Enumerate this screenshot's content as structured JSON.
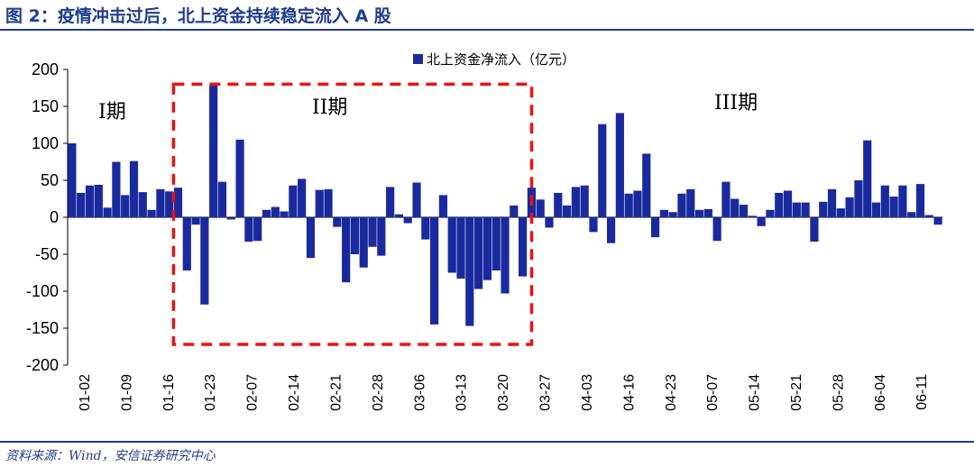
{
  "header": {
    "title": "图 2：疫情冲击过后，北上资金持续稳定流入 A 股"
  },
  "footer": {
    "source": "资料来源：Wind，安信证券研究中心"
  },
  "colors": {
    "bar": "#1a2a9e",
    "accent": "#1f3c8f",
    "box": "#ee1111"
  },
  "chart_data": {
    "type": "bar",
    "series": [
      {
        "name": "北上资金净流入（亿元）",
        "values": [
          100,
          33,
          43,
          44,
          13,
          75,
          30,
          76,
          34,
          10,
          38,
          35,
          40,
          -72,
          -10,
          -118,
          178,
          48,
          -3,
          105,
          -33,
          -32,
          10,
          14,
          8,
          43,
          52,
          -55,
          37,
          38,
          -13,
          -88,
          -50,
          -68,
          -40,
          -52,
          41,
          4,
          -8,
          47,
          -30,
          -145,
          30,
          -75,
          -83,
          -147,
          -97,
          -85,
          -72,
          -103,
          16,
          -80,
          40,
          24,
          -14,
          33,
          16,
          41,
          43,
          -20,
          126,
          -35,
          141,
          32,
          36,
          86,
          -27,
          10,
          7,
          32,
          38,
          10,
          11,
          -32,
          48,
          25,
          17,
          2,
          -12,
          10,
          33,
          36,
          20,
          20,
          -33,
          21,
          38,
          12,
          27,
          50,
          104,
          20,
          43,
          28,
          43,
          7,
          45,
          3,
          -10
        ]
      }
    ],
    "ylim": [
      -200,
      200
    ],
    "yticks": [
      "200",
      "150",
      "100",
      "50",
      "0",
      "-50",
      "-100",
      "-150",
      "-200"
    ],
    "xticks": [
      "01-02",
      "01-09",
      "01-16",
      "01-23",
      "02-07",
      "02-14",
      "02-21",
      "02-28",
      "03-06",
      "03-13",
      "03-20",
      "03-27",
      "04-03",
      "04-16",
      "04-23",
      "05-07",
      "05-14",
      "05-21",
      "05-28",
      "06-04",
      "06-11"
    ],
    "legend": "top-center",
    "annotations": {
      "period1": "I期",
      "period2": "II期",
      "period3": "III期"
    },
    "highlight_box_bars": [
      13,
      51
    ]
  }
}
